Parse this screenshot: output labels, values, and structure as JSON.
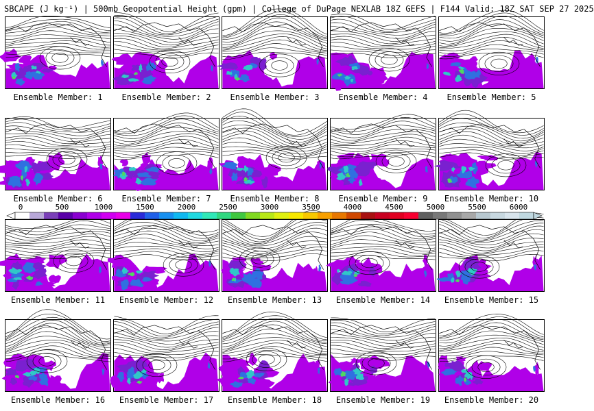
{
  "title": "SBCAPE (J kg⁻¹) | 500mb Geopotential Height (gpm) | College of DuPage NEXLAB 18Z GEFS | F144 Valid: 18Z SAT SEP 27 2025",
  "panel_caption_prefix": "Ensemble Member: ",
  "members": [
    "1",
    "2",
    "3",
    "4",
    "5",
    "6",
    "7",
    "8",
    "9",
    "10",
    "11",
    "12",
    "13",
    "14",
    "15",
    "16",
    "17",
    "18",
    "19",
    "20"
  ],
  "colorbar": {
    "labels": [
      "0",
      "500",
      "1000",
      "1500",
      "2000",
      "2500",
      "3000",
      "3500",
      "4000",
      "4500",
      "5000",
      "5500",
      "6000"
    ],
    "values": [
      0,
      500,
      1000,
      1500,
      2000,
      2500,
      3000,
      3500,
      4000,
      4500,
      5000,
      5500,
      6000
    ],
    "colors": [
      "#ffffff",
      "#b8a8d8",
      "#7a3fb8",
      "#5a00a8",
      "#8a00d0",
      "#b000e8",
      "#d000f0",
      "#e800e8",
      "#2a2ad8",
      "#2060e8",
      "#1890f0",
      "#10b8f0",
      "#20d8e0",
      "#30e8b8",
      "#30d880",
      "#40c840",
      "#80d820",
      "#b8e818",
      "#e0f010",
      "#f8e800",
      "#f8c800",
      "#f8a000",
      "#e87800",
      "#d04800",
      "#a81010",
      "#c80020",
      "#e00020",
      "#f80030",
      "#606060",
      "#787878",
      "#909090",
      "#a8a8a8",
      "#b8c8d0",
      "#c8d8e0",
      "#d8e4ec",
      "#c0d8e0"
    ]
  },
  "map_colors": {
    "cape_low": "#b000e8",
    "cape_mid": "#7a20d0",
    "cape_blue": "#3070e0",
    "cape_cyan": "#30c8c8",
    "cape_green": "#50d860",
    "contour": "#000000",
    "border": "#000000"
  }
}
